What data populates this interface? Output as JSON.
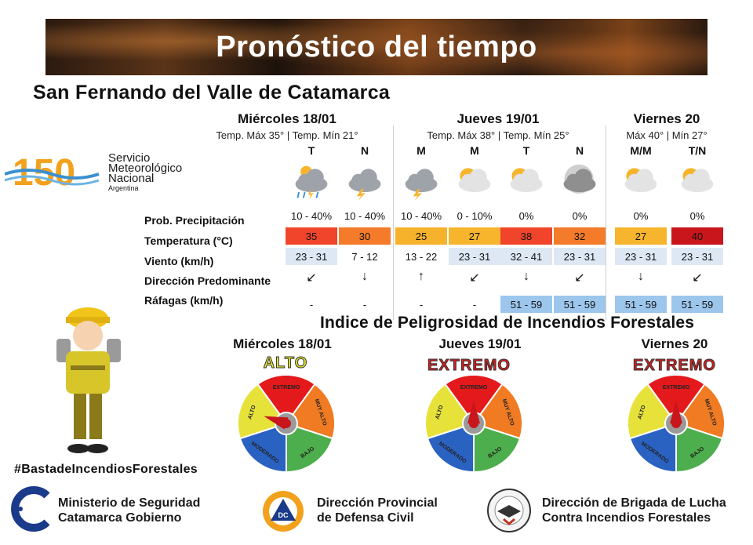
{
  "banner": {
    "title": "Pronóstico del tiempo"
  },
  "city": "San Fernando del Valle de Catamarca",
  "smn": {
    "line1": "Servicio",
    "line2": "Meteorológico",
    "line3": "Nacional",
    "line4": "Argentina",
    "logo_text": "150"
  },
  "days": [
    {
      "name": "Miércoles 18/01",
      "temps": "Temp. Máx 35° | Temp. Mín 21°"
    },
    {
      "name": "Jueves 19/01",
      "temps": "Temp. Máx 38° | Temp. Mín 25°"
    },
    {
      "name": "Viernes 20",
      "temps": "Máx 40° | Mín 27°"
    }
  ],
  "periods": [
    "T",
    "N",
    "M",
    "M",
    "T",
    "N",
    "M/M",
    "T/N"
  ],
  "icons": [
    "storm-rain-icon",
    "storm-icon",
    "storm-icon",
    "sun-cloud-icon",
    "sun-cloud-icon",
    "moon-cloud-icon",
    "sun-cloud-icon",
    "sun-cloud-icon"
  ],
  "rows": {
    "precip": {
      "label": "Prob. Precipitación",
      "values": [
        "10 - 40%",
        "10 - 40%",
        "10 - 40%",
        "0 - 10%",
        "0%",
        "0%",
        "0%",
        "0%"
      ]
    },
    "temp": {
      "label": "Temperatura (°C)",
      "values": [
        "35",
        "30",
        "25",
        "27",
        "38",
        "32",
        "27",
        "40"
      ]
    },
    "wind": {
      "label": "Viento (km/h)",
      "values": [
        "23 - 31",
        "7 - 12",
        "13 - 22",
        "23 - 31",
        "32 - 41",
        "23 - 31",
        "23 - 31",
        "23 - 31"
      ]
    },
    "direction": {
      "label": "Dirección Predominante",
      "values": [
        "↙",
        "↓",
        "↑",
        "↙",
        "↓",
        "↙",
        "↓",
        "↙"
      ]
    },
    "gusts": {
      "label": "Ráfagas (km/h)",
      "values": [
        "-",
        "-",
        "-",
        "-",
        "51 - 59",
        "51 - 59",
        "51 - 59",
        "51 - 59"
      ]
    }
  },
  "colors": {
    "temp_cells": [
      "#f0452a",
      "#f37b2a",
      "#f7b22c",
      "#f6b52d",
      "#f0452a",
      "#f37b2a",
      "#f6b52d",
      "#c9161c"
    ],
    "wind_cells": [
      "#dde8f4",
      "#ffffff",
      "#ffffff",
      "#dde8f4",
      "#dde8f4",
      "#dde8f4",
      "#dde8f4",
      "#dde8f4"
    ],
    "gust_cells": [
      "#ffffff",
      "#ffffff",
      "#ffffff",
      "#ffffff",
      "#9cc6ec",
      "#9cc6ec",
      "#9cc6ec",
      "#9cc6ec"
    ],
    "alto": "#e3e22a",
    "extremo": "#d81e1e"
  },
  "fire_index": {
    "title": "Indice de Peligrosidad de Incendios Forestales",
    "sectors": {
      "extremo": "EXTREMO",
      "muy_alto": "MUY ALTO",
      "alto": "ALTO",
      "moderado": "MODERADO",
      "bajo": "BAJO"
    },
    "days": [
      {
        "name": "Miércoles 18/01",
        "level": "ALTO"
      },
      {
        "name": "Jueves 19/01",
        "level": "EXTREMO"
      },
      {
        "name": "Viernes 20",
        "level": "EXTREMO"
      }
    ]
  },
  "hashtag": "#BastadeIncendiosForestales",
  "footer": {
    "ministerio": {
      "line1": "Ministerio de Seguridad",
      "line2": "Catamarca Gobierno"
    },
    "defensa": {
      "line1": "Dirección Provincial",
      "line2": "de Defensa Civil",
      "badge": "DC"
    },
    "brigada": {
      "line1": "Dirección de Brigada de Lucha",
      "line2": "Contra Incendios Forestales"
    }
  }
}
